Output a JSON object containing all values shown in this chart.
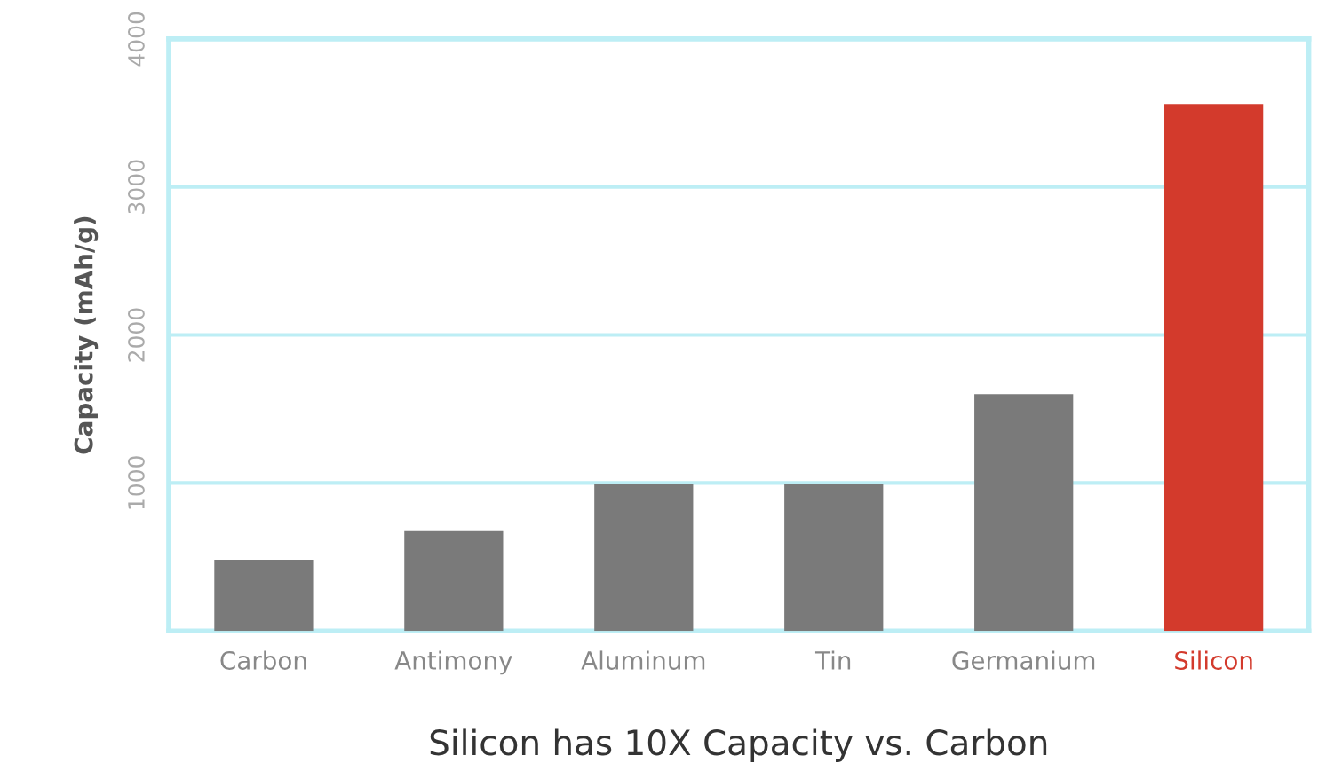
{
  "chart_data": {
    "type": "bar",
    "xlabel": "Silicon has 10X Capacity vs. Carbon",
    "ylabel": "Capacity (mAh/g)",
    "categories": [
      "Carbon",
      "Antimony",
      "Aluminum",
      "Tin",
      "Germanium",
      "Silicon"
    ],
    "values": [
      480,
      680,
      990,
      990,
      1600,
      3560
    ],
    "colors": [
      "#7a7a7a",
      "#7a7a7a",
      "#7a7a7a",
      "#7a7a7a",
      "#7a7a7a",
      "#d33a2c"
    ],
    "ylim": [
      0,
      4000
    ],
    "yticks": [
      {
        "value": 0,
        "label": null
      },
      1000,
      2000,
      3000,
      4000
    ],
    "grid": "y"
  }
}
